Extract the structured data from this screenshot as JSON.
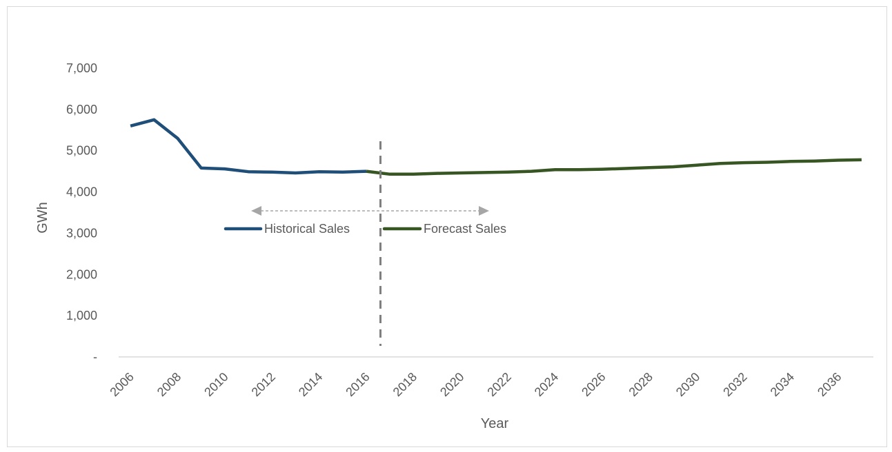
{
  "chart_data": {
    "type": "line",
    "xlabel": "Year",
    "ylabel": "GWh",
    "ylim": [
      0,
      7000
    ],
    "yticks": [
      {
        "value": 0,
        "label": "-"
      },
      {
        "value": 1000,
        "label": "1,000"
      },
      {
        "value": 2000,
        "label": "2,000"
      },
      {
        "value": 3000,
        "label": "3,000"
      },
      {
        "value": 4000,
        "label": "4,000"
      },
      {
        "value": 5000,
        "label": "5,000"
      },
      {
        "value": 6000,
        "label": "6,000"
      },
      {
        "value": 7000,
        "label": "7,000"
      }
    ],
    "xticks": [
      "2006",
      "2008",
      "2010",
      "2012",
      "2014",
      "2016",
      "2018",
      "2020",
      "2022",
      "2024",
      "2026",
      "2028",
      "2030",
      "2032",
      "2034",
      "2036"
    ],
    "grid": false,
    "series": [
      {
        "name": "Historical Sales",
        "color": "#1f4e79",
        "x": [
          2006,
          2007,
          2008,
          2009,
          2010,
          2011,
          2012,
          2013,
          2014,
          2015,
          2016
        ],
        "values": [
          5600,
          5750,
          5300,
          4580,
          4560,
          4490,
          4480,
          4460,
          4490,
          4480,
          4500
        ]
      },
      {
        "name": "Forecast Sales",
        "color": "#375623",
        "x": [
          2016,
          2017,
          2018,
          2019,
          2020,
          2021,
          2022,
          2023,
          2024,
          2025,
          2026,
          2027,
          2028,
          2029,
          2030,
          2031,
          2032,
          2033,
          2034,
          2035,
          2036,
          2037
        ],
        "values": [
          4500,
          4430,
          4430,
          4450,
          4460,
          4470,
          4480,
          4500,
          4540,
          4540,
          4550,
          4570,
          4590,
          4610,
          4650,
          4690,
          4710,
          4720,
          4740,
          4750,
          4770,
          4780
        ]
      }
    ],
    "divider_x": 2016.6,
    "divider_color": "#7f7f7f",
    "arrow_color": "#a6a6a6"
  }
}
